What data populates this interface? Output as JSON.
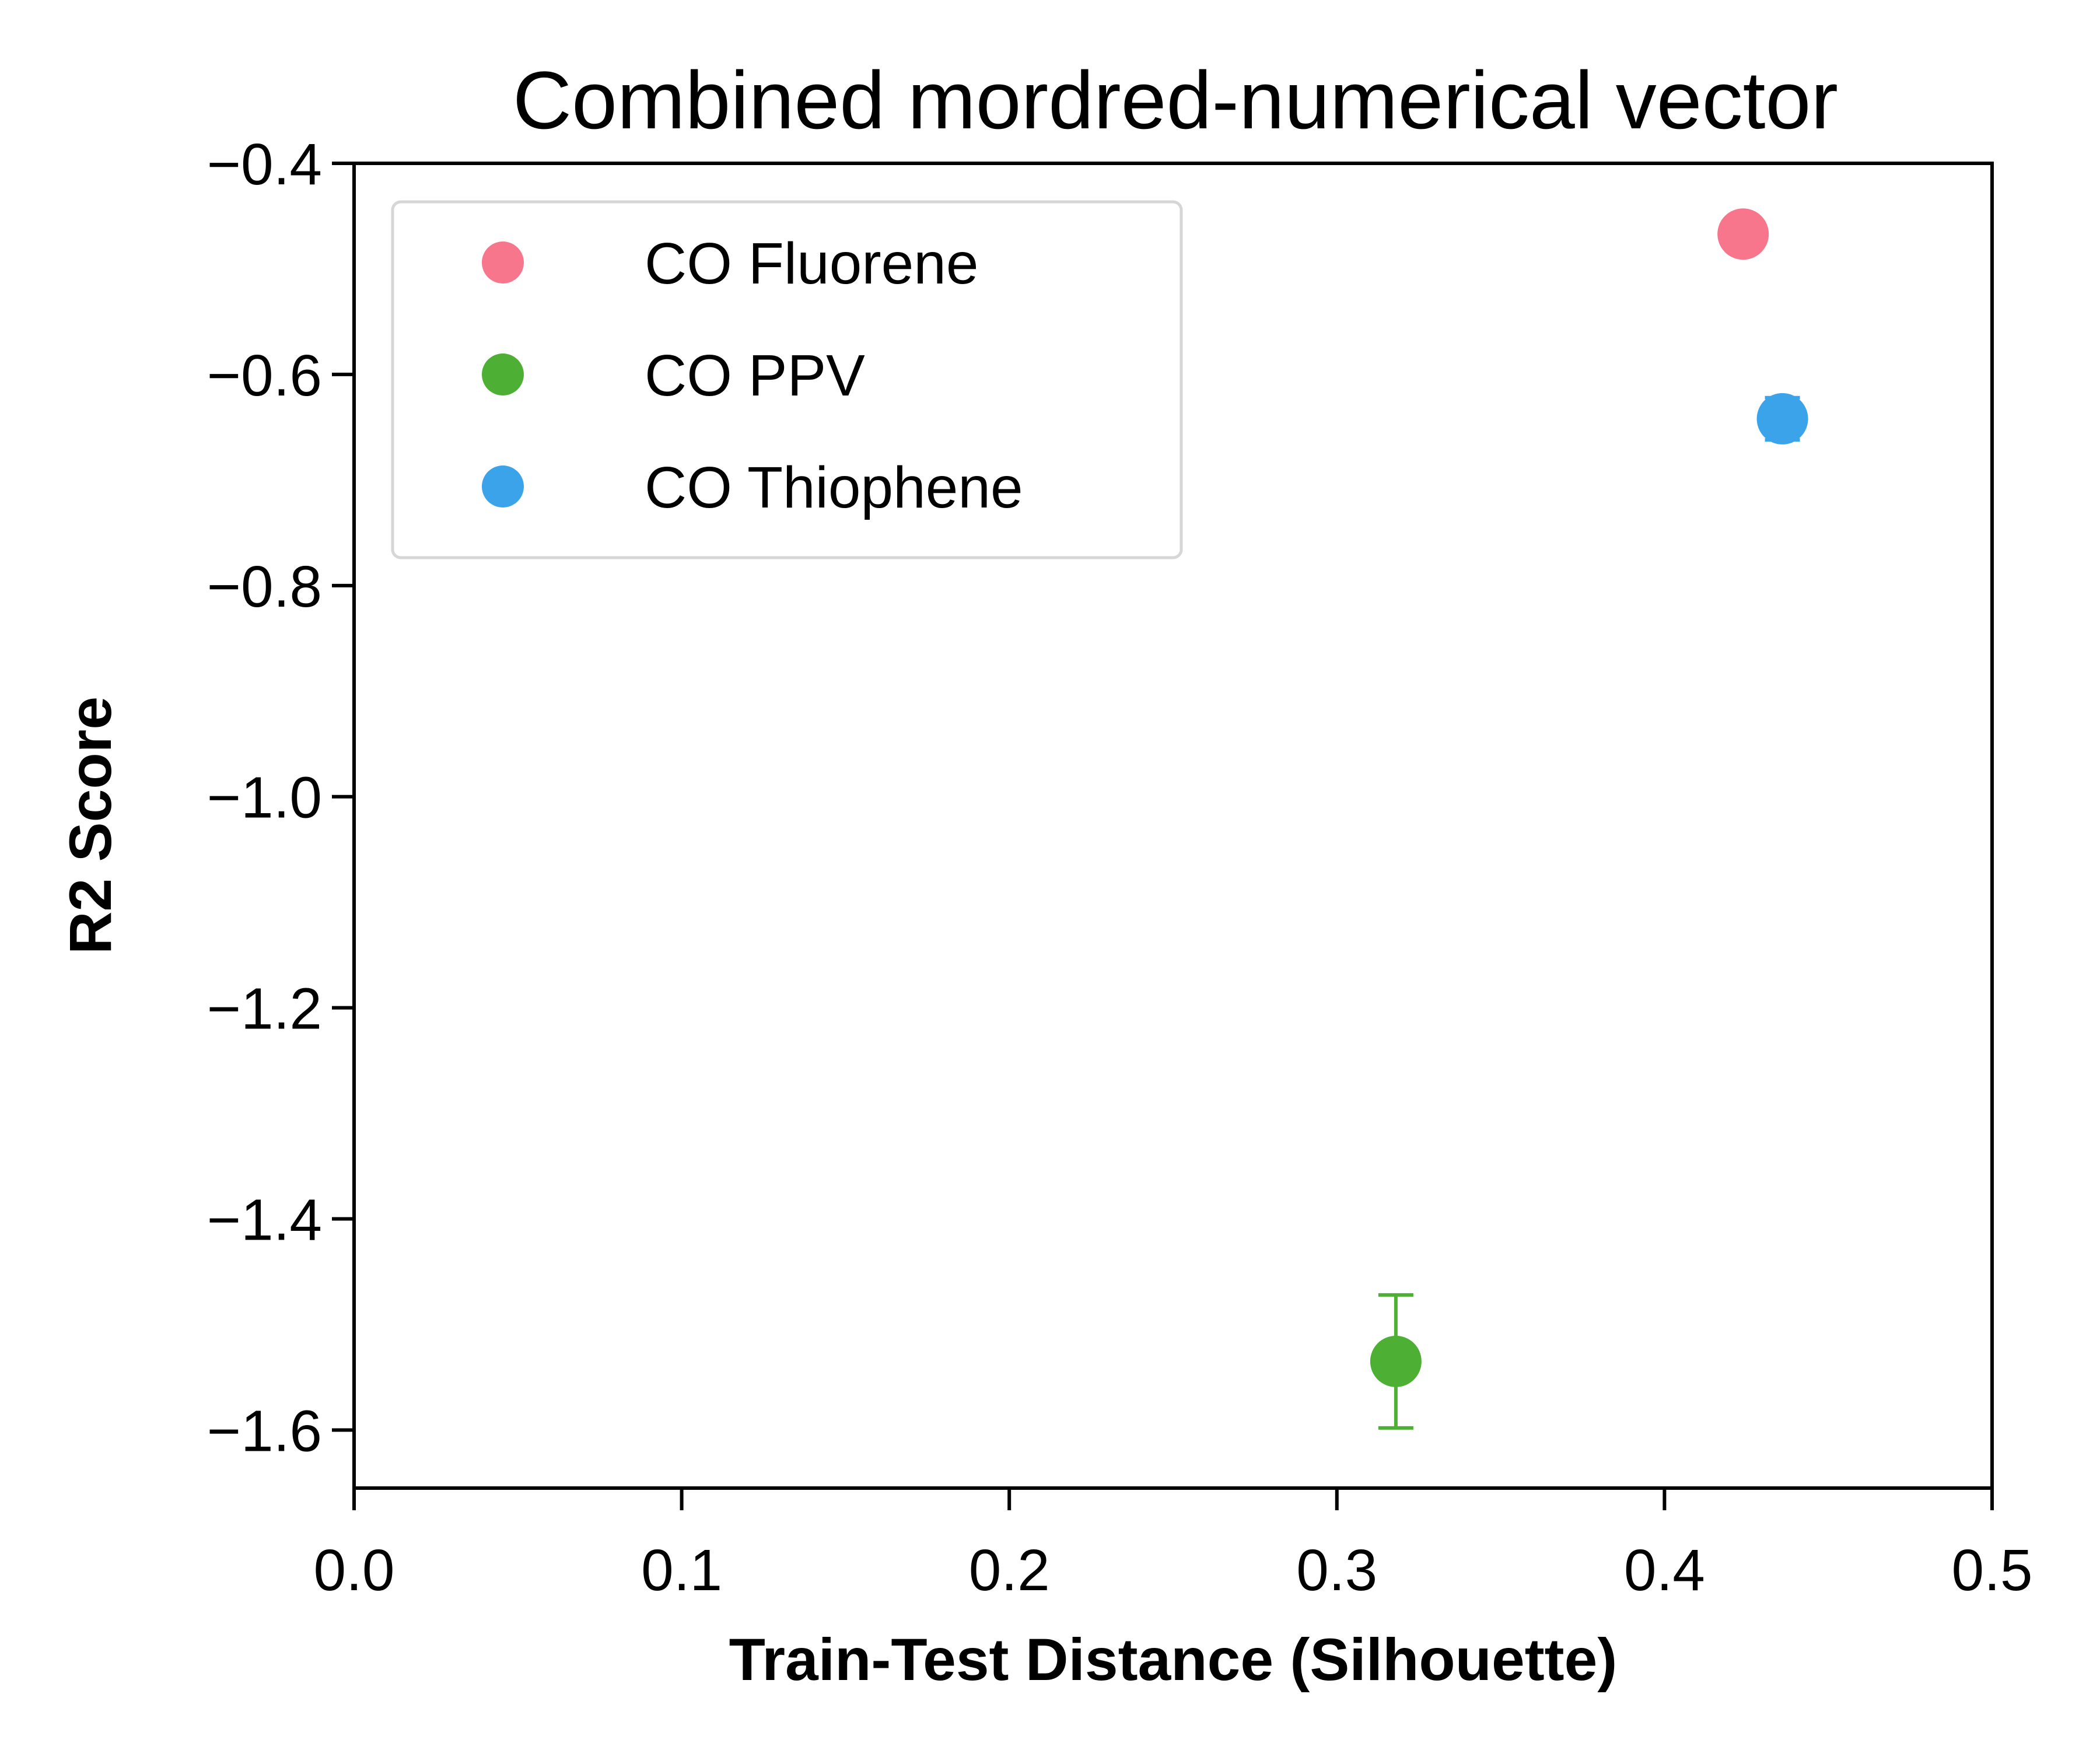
{
  "chart_data": {
    "type": "scatter",
    "title": "Combined mordred-numerical vector",
    "xlabel": "Train-Test Distance (Silhouette)",
    "ylabel": "R2 Score",
    "xlim": [
      0.0,
      0.5
    ],
    "ylim": [
      -1.655,
      -0.4
    ],
    "xticks": [
      0.0,
      0.1,
      0.2,
      0.3,
      0.4,
      0.5
    ],
    "xtick_labels": [
      "0.0",
      "0.1",
      "0.2",
      "0.3",
      "0.4",
      "0.5"
    ],
    "yticks": [
      -0.4,
      -0.6,
      -0.8,
      -1.0,
      -1.2,
      -1.4,
      -1.6
    ],
    "ytick_labels": [
      "−0.4",
      "−0.6",
      "−0.8",
      "−1.0",
      "−1.2",
      "−1.4",
      "−1.6"
    ],
    "grid": false,
    "legend_position": "top-left",
    "series": [
      {
        "name": "CO Fluorene",
        "color": "#f7768c",
        "points": [
          {
            "x": 0.424,
            "y": -0.467,
            "err": 0.0
          }
        ]
      },
      {
        "name": "CO PPV",
        "color": "#4daf33",
        "points": [
          {
            "x": 0.318,
            "y": -1.535,
            "err": 0.063
          }
        ]
      },
      {
        "name": "CO Thiophene",
        "color": "#3ba3ea",
        "points": [
          {
            "x": 0.436,
            "y": -0.642,
            "err": 0.02
          }
        ]
      }
    ]
  }
}
